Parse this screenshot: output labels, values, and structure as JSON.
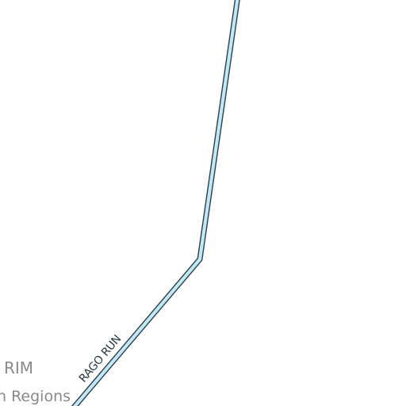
{
  "map": {
    "labels": {
      "area_name": "RIM",
      "area_subtitle": "n Regions",
      "road_name": "RAGO RUN"
    },
    "colors": {
      "background": "#ffffff",
      "road_fill": "#bfe9f7",
      "road_casing": "#2e3f45",
      "area_text": "#8a8a8a",
      "road_text": "#2a3a40"
    }
  }
}
